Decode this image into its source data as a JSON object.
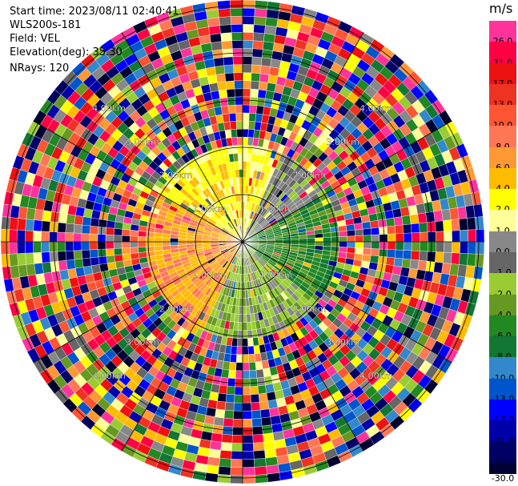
{
  "info": {
    "start_time": "Start time: 2023/08/11 02:40:41",
    "instrument": "WLS200s-181",
    "field": "Field: VEL",
    "elevation": "Elevation(deg): 35.30",
    "nrays": "NRays: 120"
  },
  "range_rings": [
    "1.00km",
    "2.00km",
    "3.00km",
    "4.00km"
  ],
  "colorbar": {
    "unit": "m/s",
    "bins": [
      {
        "lower": "26.0",
        "color": "#ff3399"
      },
      {
        "lower": "21.0",
        "color": "#ff0044"
      },
      {
        "lower": "17.0",
        "color": "#ee1111"
      },
      {
        "lower": "13.0",
        "color": "#ee3322"
      },
      {
        "lower": "10.0",
        "color": "#ff5533"
      },
      {
        "lower": "8.0",
        "color": "#ff7755"
      },
      {
        "lower": "6.0",
        "color": "#ff9933"
      },
      {
        "lower": "4.0",
        "color": "#ffbb00"
      },
      {
        "lower": "2.0",
        "color": "#ffff00"
      },
      {
        "lower": "1.0",
        "color": "#ffff99"
      },
      {
        "lower": "0.0",
        "color": "#888888"
      },
      {
        "lower": "-1.0",
        "color": "#666666"
      },
      {
        "lower": "-2.0",
        "color": "#99cc33"
      },
      {
        "lower": "-4.0",
        "color": "#669922"
      },
      {
        "lower": "-6.0",
        "color": "#228822"
      },
      {
        "lower": "-8.0",
        "color": "#117733"
      },
      {
        "lower": "-10.0",
        "color": "#3388cc"
      },
      {
        "lower": "-13.0",
        "color": "#0055cc"
      },
      {
        "lower": "-17.0",
        "color": "#0000ff"
      },
      {
        "lower": "-21.0",
        "color": "#0000aa"
      },
      {
        "lower": "-26.0",
        "color": "#000066"
      }
    ],
    "bottom_label": "-30.0"
  }
}
